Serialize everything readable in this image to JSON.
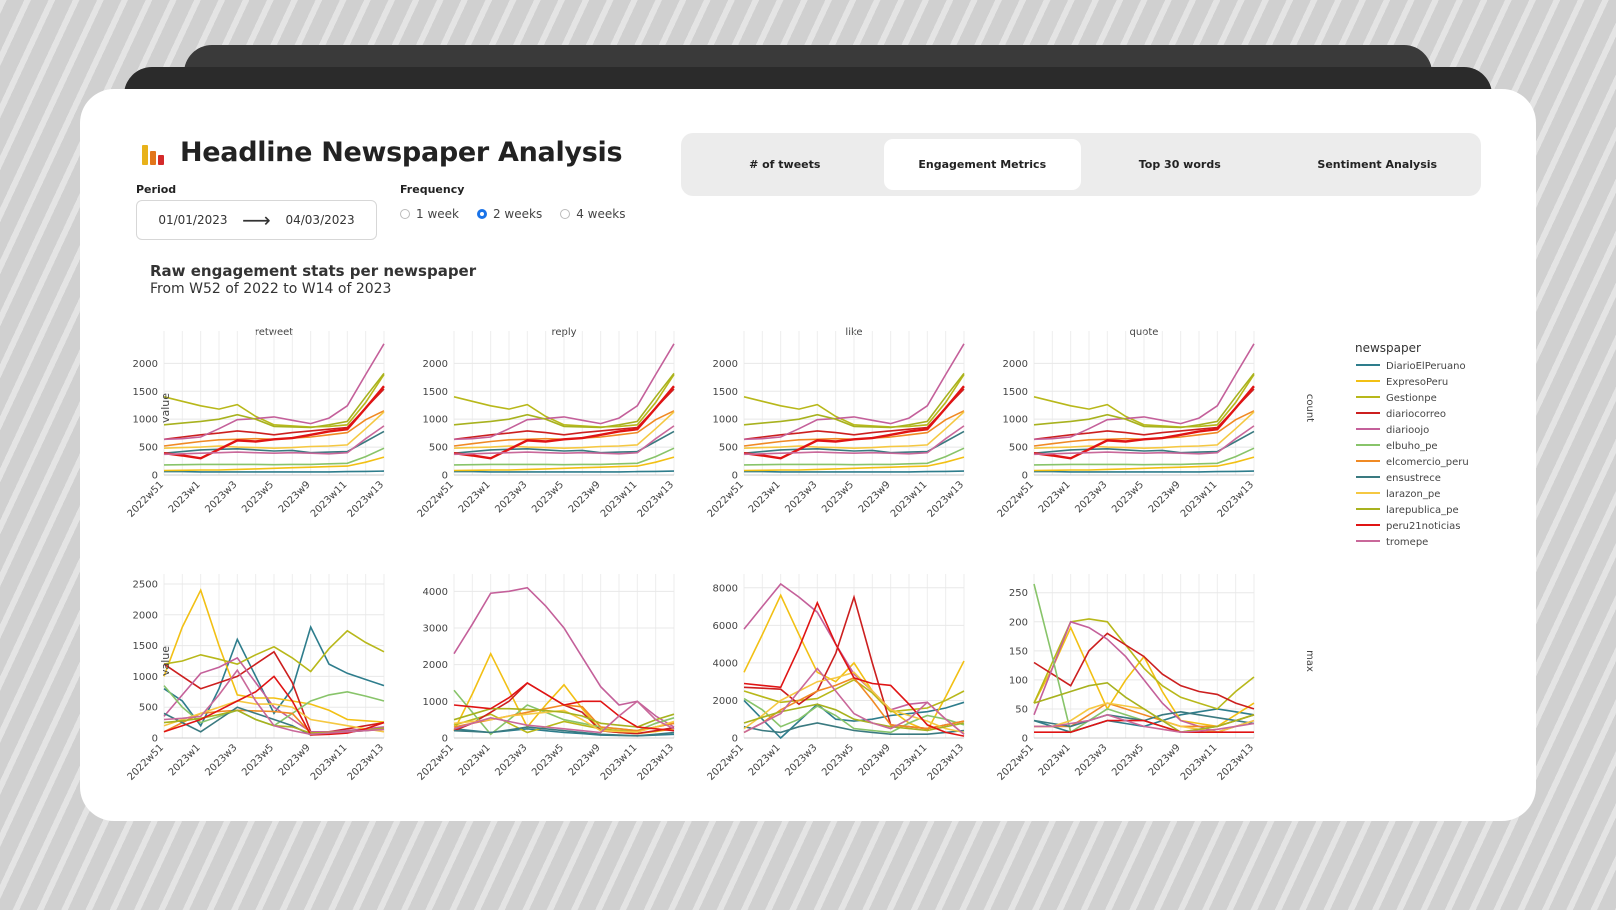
{
  "app": {
    "title": "Headline Newspaper Analysis",
    "logo_colors": [
      "#e8b21a",
      "#e2761b",
      "#d42a2a"
    ]
  },
  "controls": {
    "period_label": "Period",
    "start_date": "01/01/2023",
    "end_date": "04/03/2023",
    "frequency_label": "Frequency",
    "frequency_options": [
      "1 week",
      "2 weeks",
      "4 weeks"
    ],
    "frequency_selected": "2 weeks"
  },
  "tabs": [
    {
      "label": "# of tweets",
      "active": false
    },
    {
      "label": "Engagement Metrics",
      "active": true
    },
    {
      "label": "Top 30 words",
      "active": false
    },
    {
      "label": "Sentiment Analysis",
      "active": false
    }
  ],
  "chart_header": {
    "title": "Raw engagement stats per newspaper",
    "subtitle": "From W52 of 2022 to W14 of 2023"
  },
  "chart_data": {
    "type": "line",
    "facet_titles": [
      "retweet",
      "reply",
      "like",
      "quote"
    ],
    "row_labels": [
      "count",
      "max"
    ],
    "y_title": "value",
    "legend_title": "newspaper",
    "x": [
      "2022w51",
      "2022w52",
      "2023w1",
      "2023w2",
      "2023w3",
      "2023w4",
      "2023w5",
      "2023w6",
      "2023w9",
      "2023w10",
      "2023w11",
      "2023w12",
      "2023w13"
    ],
    "x_ticks": [
      "2022w51",
      "2023w1",
      "2023w3",
      "2023w5",
      "2023w9",
      "2023w11",
      "2023w13"
    ],
    "series": [
      {
        "name": "DiarioElPeruano",
        "color": "#2e7d8c"
      },
      {
        "name": "ExpresoPeru",
        "color": "#f2c014"
      },
      {
        "name": "Gestionpe",
        "color": "#b8b81a"
      },
      {
        "name": "diariocorreo",
        "color": "#cc1f1f"
      },
      {
        "name": "diarioojo",
        "color": "#c4609a"
      },
      {
        "name": "elbuho_pe",
        "color": "#88c46a"
      },
      {
        "name": "elcomercio_peru",
        "color": "#f08a24"
      },
      {
        "name": "ensustrece",
        "color": "#3a7a80"
      },
      {
        "name": "larazon_pe",
        "color": "#f5c842"
      },
      {
        "name": "larepublica_pe",
        "color": "#a8b21e"
      },
      {
        "name": "peru21noticias",
        "color": "#e01414"
      },
      {
        "name": "tromepe",
        "color": "#c9689a"
      }
    ],
    "count_values": [
      [
        60,
        60,
        55,
        55,
        55,
        55,
        55,
        55,
        55,
        55,
        60,
        65,
        70
      ],
      [
        80,
        85,
        90,
        90,
        100,
        110,
        120,
        130,
        140,
        150,
        160,
        230,
        320
      ],
      [
        1400,
        1320,
        1240,
        1180,
        1260,
        1050,
        900,
        880,
        860,
        870,
        900,
        1300,
        1800
      ],
      [
        640,
        680,
        720,
        750,
        790,
        760,
        720,
        760,
        790,
        820,
        850,
        1200,
        1540
      ],
      [
        640,
        650,
        680,
        830,
        990,
        1010,
        1040,
        980,
        920,
        1020,
        1240,
        1800,
        2350
      ],
      [
        180,
        185,
        190,
        190,
        190,
        190,
        185,
        190,
        190,
        200,
        210,
        330,
        480
      ],
      [
        520,
        560,
        600,
        630,
        640,
        650,
        640,
        660,
        680,
        720,
        760,
        990,
        1150
      ],
      [
        390,
        420,
        450,
        460,
        470,
        450,
        430,
        440,
        400,
        410,
        420,
        600,
        780
      ],
      [
        480,
        490,
        500,
        520,
        500,
        490,
        480,
        490,
        510,
        520,
        540,
        830,
        1130
      ],
      [
        900,
        930,
        960,
        1000,
        1080,
        1000,
        870,
        860,
        850,
        900,
        960,
        1400,
        1820
      ],
      [
        390,
        350,
        300,
        460,
        620,
        600,
        640,
        660,
        720,
        780,
        820,
        1200,
        1590
      ],
      [
        370,
        380,
        390,
        400,
        410,
        400,
        390,
        400,
        390,
        380,
        400,
        650,
        880
      ]
    ],
    "max_values": [
      [
        [
          800,
          600,
          200,
          800,
          1600,
          1000,
          400,
          800,
          1800,
          1200,
          1050,
          950,
          850
        ],
        [
          1000,
          1800,
          2400,
          1500,
          700,
          650,
          650,
          600,
          550,
          450,
          300,
          280,
          260
        ],
        [
          1200,
          1250,
          1350,
          1280,
          1200,
          1350,
          1480,
          1300,
          1080,
          1450,
          1740,
          1550,
          1400
        ],
        [
          1200,
          1000,
          800,
          900,
          1000,
          1200,
          1400,
          900,
          100,
          100,
          150,
          200,
          250
        ],
        [
          350,
          700,
          1050,
          1150,
          1300,
          900,
          500,
          300,
          100,
          100,
          120,
          150,
          180
        ],
        [
          850,
          500,
          250,
          350,
          450,
          300,
          200,
          400,
          600,
          700,
          750,
          680,
          600
        ],
        [
          100,
          250,
          400,
          430,
          450,
          440,
          430,
          400,
          80,
          90,
          100,
          120,
          140
        ],
        [
          400,
          250,
          100,
          300,
          500,
          400,
          300,
          200,
          50,
          80,
          100,
          120,
          150
        ],
        [
          200,
          300,
          400,
          500,
          600,
          550,
          550,
          500,
          300,
          250,
          200,
          150,
          100
        ],
        [
          250,
          280,
          320,
          380,
          450,
          300,
          200,
          180,
          80,
          90,
          100,
          130,
          160
        ],
        [
          100,
          200,
          300,
          450,
          600,
          750,
          1000,
          600,
          50,
          60,
          80,
          150,
          250
        ],
        [
          300,
          320,
          350,
          700,
          1100,
          600,
          200,
          120,
          60,
          80,
          100,
          120,
          140
        ]
      ],
      [
        [
          250,
          200,
          150,
          200,
          250,
          200,
          150,
          120,
          80,
          70,
          60,
          80,
          100
        ],
        [
          200,
          1200,
          2300,
          1300,
          300,
          900,
          1450,
          800,
          200,
          150,
          120,
          180,
          250
        ],
        [
          350,
          500,
          650,
          400,
          150,
          300,
          450,
          350,
          250,
          200,
          180,
          300,
          400
        ],
        [
          200,
          400,
          700,
          1000,
          1500,
          1200,
          900,
          700,
          200,
          150,
          120,
          200,
          280
        ],
        [
          2300,
          3100,
          3950,
          4000,
          4100,
          3600,
          3000,
          2200,
          1400,
          900,
          1000,
          600,
          300
        ],
        [
          1300,
          700,
          100,
          500,
          900,
          700,
          500,
          400,
          300,
          250,
          200,
          400,
          550
        ],
        [
          300,
          400,
          500,
          600,
          700,
          800,
          900,
          850,
          300,
          250,
          200,
          300,
          400
        ],
        [
          200,
          180,
          150,
          220,
          300,
          250,
          200,
          150,
          100,
          80,
          60,
          100,
          150
        ],
        [
          400,
          450,
          500,
          600,
          650,
          700,
          750,
          500,
          200,
          180,
          160,
          300,
          450
        ],
        [
          500,
          650,
          800,
          800,
          780,
          750,
          700,
          600,
          400,
          350,
          300,
          500,
          650
        ],
        [
          900,
          850,
          800,
          1100,
          1500,
          1200,
          900,
          1000,
          1000,
          600,
          300,
          250,
          200
        ],
        [
          250,
          400,
          550,
          450,
          350,
          300,
          250,
          200,
          150,
          600,
          1000,
          500,
          250
        ]
      ],
      [
        [
          2000,
          1000,
          0,
          900,
          1800,
          1000,
          900,
          1000,
          1200,
          1300,
          1400,
          1600,
          1900
        ],
        [
          3500,
          5500,
          7600,
          5500,
          3500,
          3000,
          4000,
          2500,
          1500,
          800,
          400,
          2200,
          4100
        ],
        [
          2500,
          2200,
          1900,
          2000,
          2100,
          2600,
          3100,
          2400,
          1400,
          1500,
          1600,
          2000,
          2500
        ],
        [
          2700,
          2650,
          2600,
          1800,
          2500,
          4500,
          7500,
          4000,
          700,
          600,
          500,
          700,
          900
        ],
        [
          5800,
          7000,
          8200,
          7500,
          6700,
          5000,
          3400,
          2500,
          1500,
          1800,
          1900,
          1000,
          200
        ],
        [
          2100,
          1500,
          600,
          1000,
          1700,
          1200,
          500,
          400,
          300,
          800,
          1200,
          1000,
          700
        ],
        [
          300,
          800,
          1500,
          2000,
          2500,
          2800,
          3200,
          2000,
          700,
          600,
          500,
          700,
          900
        ],
        [
          600,
          400,
          300,
          600,
          800,
          600,
          400,
          300,
          200,
          200,
          200,
          300,
          400
        ],
        [
          500,
          1200,
          2000,
          2500,
          3000,
          3200,
          3500,
          2500,
          1500,
          1200,
          900,
          500,
          300
        ],
        [
          800,
          1100,
          1400,
          1600,
          1800,
          1500,
          1000,
          800,
          600,
          500,
          400,
          600,
          800
        ],
        [
          2900,
          2800,
          2700,
          4800,
          7200,
          5000,
          3200,
          2900,
          2800,
          1800,
          700,
          300,
          100
        ],
        [
          300,
          800,
          1300,
          2500,
          3700,
          2500,
          1300,
          800,
          500,
          1000,
          1900,
          1000,
          200
        ]
      ],
      [
        [
          30,
          20,
          10,
          20,
          30,
          25,
          20,
          30,
          40,
          45,
          50,
          45,
          40
        ],
        [
          60,
          120,
          190,
          120,
          50,
          100,
          140,
          80,
          30,
          25,
          20,
          40,
          60
        ],
        [
          60,
          130,
          200,
          205,
          200,
          160,
          120,
          90,
          70,
          60,
          50,
          80,
          105
        ],
        [
          130,
          110,
          90,
          150,
          180,
          160,
          140,
          110,
          90,
          80,
          75,
          60,
          50
        ],
        [
          40,
          120,
          200,
          190,
          170,
          140,
          100,
          60,
          30,
          20,
          10,
          20,
          30
        ],
        [
          265,
          140,
          10,
          30,
          50,
          40,
          30,
          20,
          10,
          15,
          20,
          30,
          40
        ],
        [
          20,
          20,
          20,
          40,
          60,
          50,
          40,
          30,
          20,
          20,
          20,
          30,
          40
        ],
        [
          30,
          25,
          20,
          30,
          40,
          35,
          30,
          40,
          45,
          40,
          35,
          30,
          25
        ],
        [
          20,
          20,
          30,
          50,
          60,
          55,
          50,
          30,
          20,
          15,
          10,
          20,
          30
        ],
        [
          60,
          70,
          80,
          90,
          95,
          70,
          50,
          30,
          10,
          15,
          20,
          30,
          40
        ],
        [
          10,
          10,
          10,
          20,
          30,
          30,
          30,
          20,
          10,
          10,
          10,
          10,
          10
        ],
        [
          20,
          20,
          25,
          30,
          40,
          30,
          20,
          15,
          10,
          12,
          15,
          20,
          25
        ]
      ]
    ],
    "count_ylim": [
      0,
      2400
    ],
    "count_ticks": [
      0,
      500,
      1000,
      1500,
      2000
    ],
    "max_ylims": [
      [
        0,
        2500
      ],
      [
        0,
        4200
      ],
      [
        0,
        8200
      ],
      [
        0,
        265
      ]
    ],
    "max_ticks": [
      [
        0,
        500,
        1000,
        1500,
        2000,
        2500
      ],
      [
        0,
        1000,
        2000,
        3000,
        4000
      ],
      [
        0,
        2000,
        4000,
        6000,
        8000
      ],
      [
        0,
        50,
        100,
        150,
        200,
        250
      ]
    ]
  }
}
